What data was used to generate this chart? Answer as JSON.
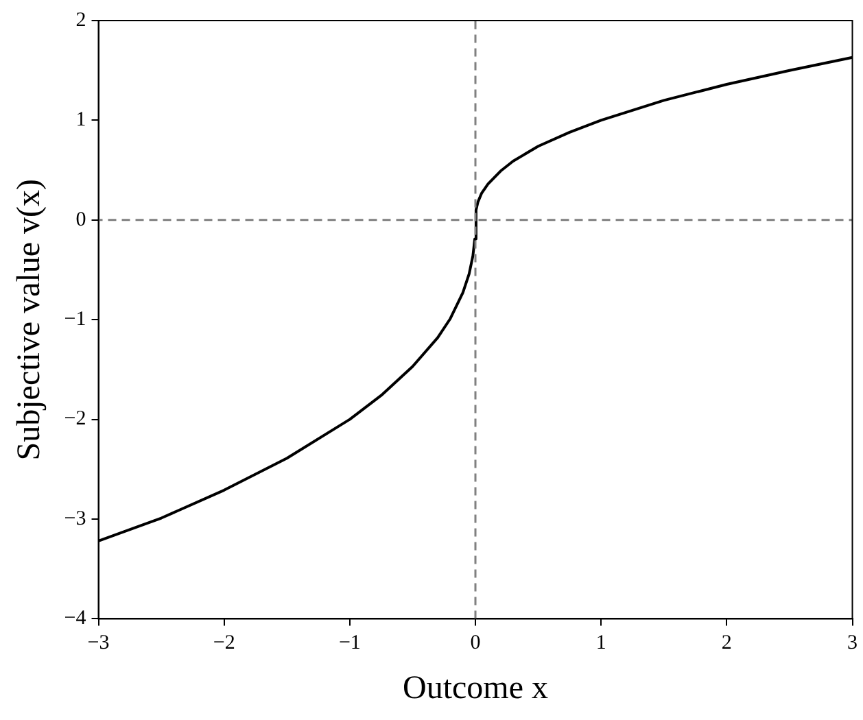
{
  "chart_data": {
    "type": "line",
    "xlabel": "Outcome x",
    "ylabel": "Subjective value v(x)",
    "x": [
      -3,
      -2.5,
      -2,
      -1.5,
      -1,
      -0.75,
      -0.5,
      -0.3,
      -0.2,
      -0.1,
      -0.05,
      -0.02,
      -0.005,
      0.005,
      0.02,
      0.05,
      0.1,
      0.2,
      0.3,
      0.5,
      0.75,
      1,
      1.5,
      2,
      2.5,
      3
    ],
    "series": [
      {
        "color": "#000000",
        "values": [
          -3.22,
          -2.99,
          -2.71,
          -2.39,
          -2.0,
          -1.76,
          -1.47,
          -1.18,
          -0.99,
          -0.73,
          -0.54,
          -0.36,
          -0.19,
          0.1,
          0.18,
          0.27,
          0.36,
          0.49,
          0.59,
          0.74,
          0.88,
          1.0,
          1.2,
          1.36,
          1.5,
          1.63
        ]
      }
    ],
    "xlim": [
      -3,
      3
    ],
    "ylim": [
      -4,
      2
    ],
    "xticks": [
      {
        "value": -3,
        "label": "−3"
      },
      {
        "value": -2,
        "label": "−2"
      },
      {
        "value": -1,
        "label": "−1"
      },
      0,
      1,
      2,
      3
    ],
    "yticks": [
      {
        "value": -4,
        "label": "−4"
      },
      {
        "value": -3,
        "label": "−3"
      },
      {
        "value": -2,
        "label": "−2"
      },
      {
        "value": -1,
        "label": "−1"
      },
      0,
      1,
      2
    ],
    "ref_lines": [
      {
        "axis": "x",
        "value": 0,
        "color": "#808080",
        "line_style": "dashed"
      },
      {
        "axis": "y",
        "value": 0,
        "color": "#808080",
        "line_style": "dashed"
      }
    ],
    "grid": false,
    "legend": false,
    "marker": "none",
    "line_style": "solid"
  }
}
